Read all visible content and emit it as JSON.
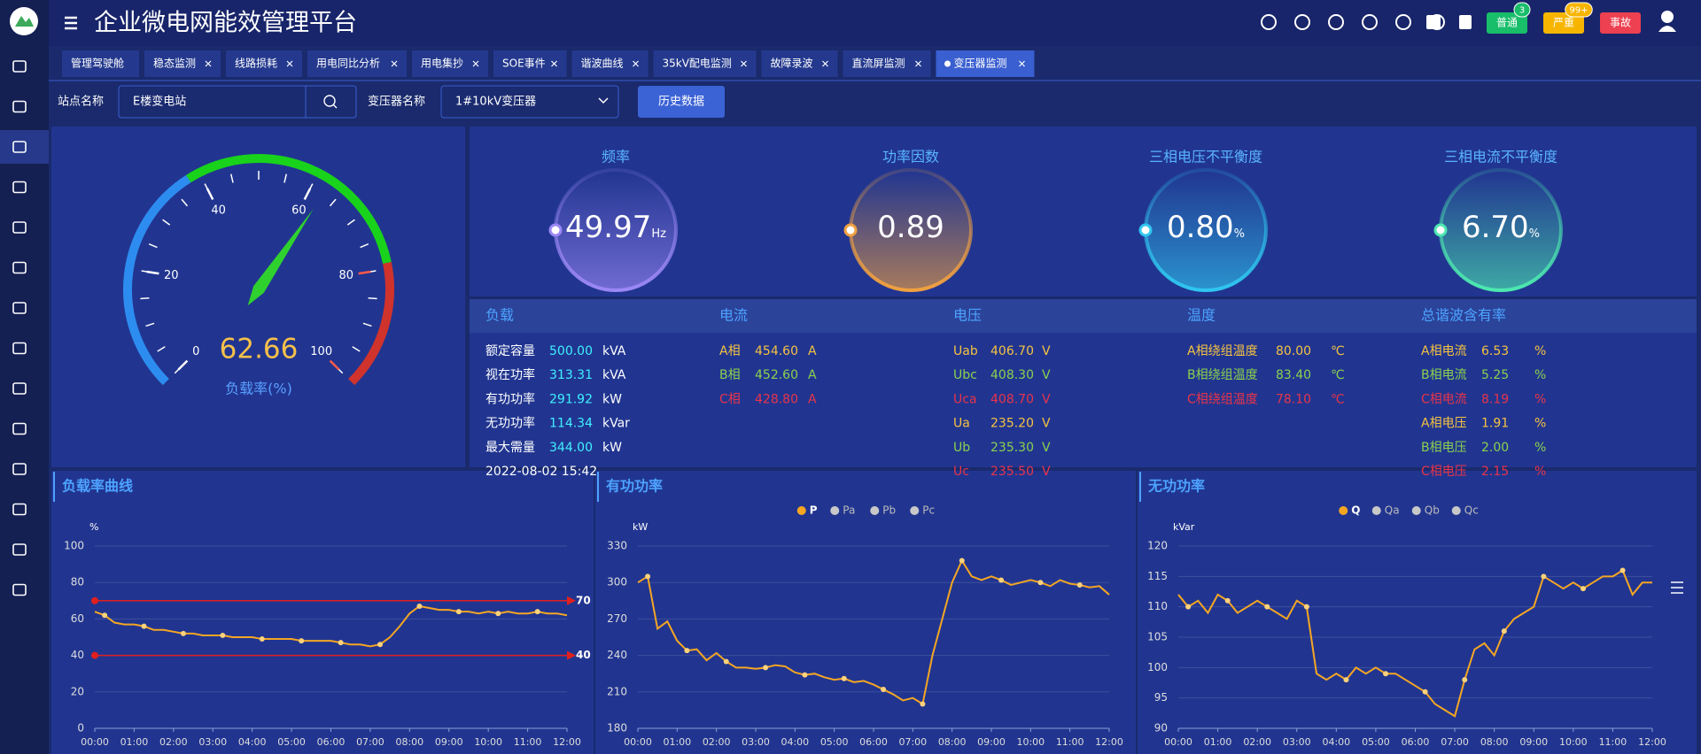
{
  "header": {
    "title": "企业微电网能效管理平台",
    "alerts": [
      {
        "label": "普通",
        "count": 3,
        "color": "#19be6b"
      },
      {
        "label": "严重",
        "count": "99+",
        "color": "#f7b500"
      },
      {
        "label": "事故",
        "color": "#ed4050"
      }
    ]
  },
  "tabs": {
    "items": [
      "管理驾驶舱",
      "稳态监测",
      "线路损耗",
      "用电同比分析",
      "用电集抄",
      "SOE事件",
      "谐波曲线",
      "35kV配电监测",
      "故障录波",
      "直流屏监测",
      "变压器监测"
    ],
    "active": 10
  },
  "filter": {
    "station_label": "站点名称",
    "station_value": "E楼变电站",
    "transformer_label": "变压器名称",
    "transformer_value": "1#10kV变压器",
    "button": "历史数据"
  },
  "gauge": {
    "value": 62.66,
    "label": "负载率(%)",
    "lim": [
      0,
      100
    ],
    "ticks": [
      0,
      20,
      40,
      60,
      80,
      100
    ]
  },
  "rings": [
    {
      "title": "频率",
      "value": "49.97",
      "unit": "Hz",
      "color": "#9b87f5"
    },
    {
      "title": "功率因数",
      "value": "0.89",
      "color": "#f0a040"
    },
    {
      "title": "三相电压不平衡度",
      "value": "0.80",
      "unit": "%",
      "color": "#2fc6f0"
    },
    {
      "title": "三相电流不平衡度",
      "value": "6.70",
      "unit": "%",
      "color": "#4de8b0"
    }
  ],
  "info": {
    "sections": [
      {
        "title": "负载",
        "value_color": "#3ff0ff",
        "rows": [
          [
            "额定容量",
            "500.00",
            "kVA"
          ],
          [
            "视在功率",
            "313.31",
            "kVA"
          ],
          [
            "有功功率",
            "291.92",
            "kW"
          ],
          [
            "无功功率",
            "114.34",
            "kVar"
          ],
          [
            "最大需量",
            "344.00",
            "kW"
          ]
        ]
      },
      {
        "title": "电流",
        "colors": [
          "#f5c242",
          "#8bd14f",
          "#e8344a"
        ],
        "rows": [
          [
            "A相",
            "454.60",
            "A"
          ],
          [
            "B相",
            "452.60",
            "A"
          ],
          [
            "C相",
            "428.80",
            "A"
          ]
        ]
      },
      {
        "title": "电压",
        "colors": [
          "#f5c242",
          "#8bd14f",
          "#e8344a",
          "#f5c242",
          "#8bd14f",
          "#e8344a"
        ],
        "rows": [
          [
            "Uab",
            "406.70",
            "V"
          ],
          [
            "Ubc",
            "408.30",
            "V"
          ],
          [
            "Uca",
            "408.70",
            "V"
          ],
          [
            "Ua",
            "235.20",
            "V"
          ],
          [
            "Ub",
            "235.30",
            "V"
          ],
          [
            "Uc",
            "235.50",
            "V"
          ]
        ]
      },
      {
        "title": "温度",
        "colors": [
          "#f5c242",
          "#8bd14f",
          "#e8344a"
        ],
        "rows": [
          [
            "A相绕组温度",
            "80.00",
            "℃"
          ],
          [
            "B相绕组温度",
            "83.40",
            "℃"
          ],
          [
            "C相绕组温度",
            "78.10",
            "℃"
          ]
        ]
      },
      {
        "title": "总谐波含有率",
        "colors": [
          "#f5c242",
          "#8bd14f",
          "#e8344a",
          "#f5c242",
          "#8bd14f",
          "#e8344a"
        ],
        "rows": [
          [
            "A相电流",
            "6.53",
            "%"
          ],
          [
            "B相电流",
            "5.25",
            "%"
          ],
          [
            "C相电流",
            "8.19",
            "%"
          ],
          [
            "A相电压",
            "1.91",
            "%"
          ],
          [
            "B相电压",
            "2.00",
            "%"
          ],
          [
            "C相电压",
            "2.15",
            "%"
          ]
        ]
      }
    ],
    "timestamp": "2022-08-02 15:42"
  },
  "chart_data": [
    {
      "type": "line",
      "title": "负载率曲线",
      "y_unit": "%",
      "color": "#f5a623",
      "x": [
        0,
        0.25,
        0.5,
        0.75,
        1,
        1.25,
        1.5,
        1.75,
        2,
        2.25,
        2.5,
        2.75,
        3,
        3.25,
        3.5,
        3.75,
        4,
        4.25,
        4.5,
        4.75,
        5,
        5.25,
        5.5,
        5.75,
        6,
        6.25,
        6.5,
        6.75,
        7,
        7.25,
        7.5,
        7.75,
        8,
        8.25,
        8.5,
        8.75,
        9,
        9.25,
        9.5,
        9.75,
        10,
        10.25,
        10.5,
        10.75,
        11,
        11.25,
        11.5,
        11.75,
        12
      ],
      "values": [
        64,
        62,
        58,
        57,
        57,
        56,
        54,
        54,
        53,
        52,
        52,
        51,
        51,
        51,
        50,
        50,
        50,
        49,
        49,
        49,
        49,
        48,
        48,
        48,
        48,
        47,
        46,
        46,
        45,
        46,
        50,
        56,
        63,
        67,
        66,
        65,
        65,
        64,
        64,
        63,
        64,
        63,
        64,
        63,
        63,
        64,
        63,
        63,
        62
      ],
      "mark_lines": [
        70,
        40
      ],
      "mark_line_color": "#e0201f",
      "xlim": [
        0,
        12
      ],
      "xticks": [
        {
          "value": 0,
          "label": "00:00"
        },
        {
          "value": 1,
          "label": "01:00"
        },
        {
          "value": 2,
          "label": "02:00"
        },
        {
          "value": 3,
          "label": "03:00"
        },
        {
          "value": 4,
          "label": "04:00"
        },
        {
          "value": 5,
          "label": "05:00"
        },
        {
          "value": 6,
          "label": "06:00"
        },
        {
          "value": 7,
          "label": "07:00"
        },
        {
          "value": 8,
          "label": "08:00"
        },
        {
          "value": 9,
          "label": "09:00"
        },
        {
          "value": 10,
          "label": "10:00"
        },
        {
          "value": 11,
          "label": "11:00"
        },
        {
          "value": 12,
          "label": "12:00"
        }
      ],
      "ylim": [
        0,
        100
      ],
      "yticks": [
        0,
        20,
        40,
        60,
        80,
        100
      ],
      "grid": true
    },
    {
      "type": "line",
      "title": "有功功率",
      "y_unit": "kW",
      "x": [
        0,
        0.25,
        0.5,
        0.75,
        1,
        1.25,
        1.5,
        1.75,
        2,
        2.25,
        2.5,
        2.75,
        3,
        3.25,
        3.5,
        3.75,
        4,
        4.25,
        4.5,
        4.75,
        5,
        5.25,
        5.5,
        5.75,
        6,
        6.25,
        6.5,
        6.75,
        7,
        7.25,
        7.5,
        7.75,
        8,
        8.25,
        8.5,
        8.75,
        9,
        9.25,
        9.5,
        9.75,
        10,
        10.25,
        10.5,
        10.75,
        11,
        11.25,
        11.5,
        11.75,
        12
      ],
      "series": [
        {
          "name": "P",
          "color": "#f5a623",
          "values": [
            300,
            305,
            262,
            268,
            252,
            244,
            245,
            236,
            242,
            235,
            230,
            230,
            229,
            230,
            232,
            231,
            226,
            224,
            225,
            222,
            220,
            221,
            218,
            219,
            216,
            212,
            208,
            203,
            205,
            200,
            240,
            270,
            300,
            318,
            305,
            302,
            305,
            302,
            298,
            300,
            302,
            300,
            297,
            302,
            299,
            298,
            296,
            297,
            290
          ]
        }
      ],
      "inactive_series": [
        "Pa",
        "Pb",
        "Pc"
      ],
      "inactive_color": "#c8c8c8",
      "xlim": [
        0,
        12
      ],
      "xticks": [
        {
          "value": 0,
          "label": "00:00"
        },
        {
          "value": 1,
          "label": "01:00"
        },
        {
          "value": 2,
          "label": "02:00"
        },
        {
          "value": 3,
          "label": "03:00"
        },
        {
          "value": 4,
          "label": "04:00"
        },
        {
          "value": 5,
          "label": "05:00"
        },
        {
          "value": 6,
          "label": "06:00"
        },
        {
          "value": 7,
          "label": "07:00"
        },
        {
          "value": 8,
          "label": "08:00"
        },
        {
          "value": 9,
          "label": "09:00"
        },
        {
          "value": 10,
          "label": "10:00"
        },
        {
          "value": 11,
          "label": "11:00"
        },
        {
          "value": 12,
          "label": "12:00"
        }
      ],
      "ylim": [
        180,
        330
      ],
      "yticks": [
        180,
        210,
        240,
        270,
        300,
        330
      ],
      "grid": true
    },
    {
      "type": "line",
      "title": "无功功率",
      "y_unit": "kVar",
      "x": [
        0,
        0.25,
        0.5,
        0.75,
        1,
        1.25,
        1.5,
        1.75,
        2,
        2.25,
        2.5,
        2.75,
        3,
        3.25,
        3.5,
        3.75,
        4,
        4.25,
        4.5,
        4.75,
        5,
        5.25,
        5.5,
        5.75,
        6,
        6.25,
        6.5,
        6.75,
        7,
        7.25,
        7.5,
        7.75,
        8,
        8.25,
        8.5,
        8.75,
        9,
        9.25,
        9.5,
        9.75,
        10,
        10.25,
        10.5,
        10.75,
        11,
        11.25,
        11.5,
        11.75,
        12
      ],
      "series": [
        {
          "name": "Q",
          "color": "#f5a623",
          "values": [
            112,
            110,
            111,
            109,
            112,
            111,
            109,
            110,
            111,
            110,
            109,
            108,
            111,
            110,
            99,
            98,
            99,
            98,
            100,
            99,
            100,
            99,
            99,
            98,
            97,
            96,
            94,
            93,
            92,
            98,
            103,
            104,
            102,
            106,
            108,
            109,
            110,
            115,
            114,
            113,
            114,
            113,
            114,
            115,
            115,
            116,
            112,
            114,
            114
          ]
        }
      ],
      "inactive_series": [
        "Qa",
        "Qb",
        "Qc"
      ],
      "inactive_color": "#c8c8c8",
      "xlim": [
        0,
        12
      ],
      "xticks": [
        {
          "value": 0,
          "label": "00:00"
        },
        {
          "value": 1,
          "label": "01:00"
        },
        {
          "value": 2,
          "label": "02:00"
        },
        {
          "value": 3,
          "label": "03:00"
        },
        {
          "value": 4,
          "label": "04:00"
        },
        {
          "value": 5,
          "label": "05:00"
        },
        {
          "value": 6,
          "label": "06:00"
        },
        {
          "value": 7,
          "label": "07:00"
        },
        {
          "value": 8,
          "label": "08:00"
        },
        {
          "value": 9,
          "label": "09:00"
        },
        {
          "value": 10,
          "label": "10:00"
        },
        {
          "value": 11,
          "label": "11:00"
        },
        {
          "value": 12,
          "label": "12:00"
        }
      ],
      "ylim": [
        90,
        120
      ],
      "yticks": [
        90,
        95,
        100,
        105,
        110,
        115,
        120
      ],
      "grid": true
    }
  ]
}
